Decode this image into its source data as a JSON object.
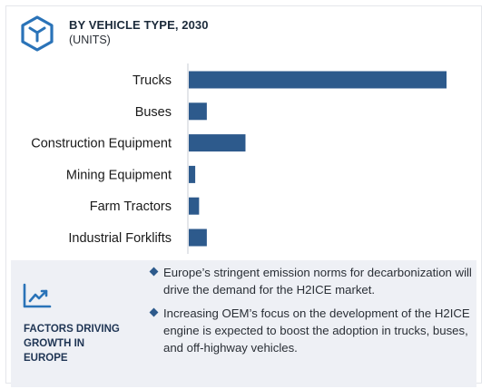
{
  "header": {
    "title": "BY VEHICLE TYPE, 2030",
    "subtitle": "(UNITS)"
  },
  "colors": {
    "bar": "#2d5a8c",
    "accent": "#2a73b8",
    "panel": "#eef0f5"
  },
  "chart_data": {
    "type": "bar",
    "orientation": "horizontal",
    "title": "BY VEHICLE TYPE, 2030",
    "subtitle": "(UNITS)",
    "categories": [
      "Trucks",
      "Buses",
      "Construction Equipment",
      "Mining Equipment",
      "Farm Tractors",
      "Industrial Forklifts"
    ],
    "values": [
      100,
      7,
      22,
      2.5,
      4,
      7
    ],
    "value_axis_visible": false,
    "grid": false
  },
  "factors": {
    "icon": "trend-line-icon",
    "label": "FACTORS DRIVING\nGROWTH IN\nEUROPE",
    "bullets": [
      "Europe’s stringent emission norms for decarbonization will drive the demand for the H2ICE market.",
      "Increasing OEM’s focus on the development of the H2ICE engine is expected to boost the adoption in trucks, buses, and off-highway vehicles."
    ]
  }
}
